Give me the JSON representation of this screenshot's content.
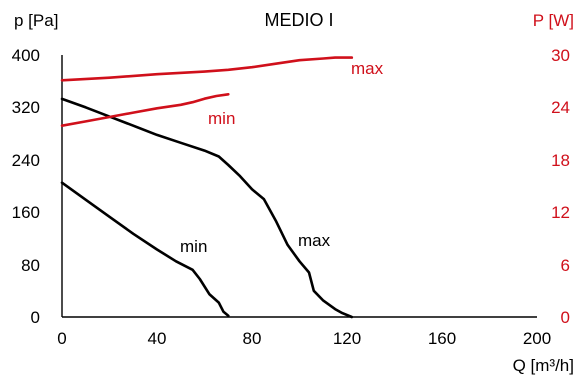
{
  "chart_data": {
    "type": "line",
    "title": "MEDIO I",
    "xlabel": "Q [m³/h]",
    "ylabel_left": "p [Pa]",
    "ylabel_right": "P [W]",
    "xlim": [
      0,
      200
    ],
    "ylim_left": [
      0,
      400
    ],
    "ylim_right": [
      0,
      30
    ],
    "x_ticks": [
      "0",
      "40",
      "80",
      "120",
      "160",
      "200"
    ],
    "y_left_ticks": [
      "0",
      "80",
      "160",
      "240",
      "320",
      "400"
    ],
    "y_right_ticks": [
      "0",
      "6",
      "12",
      "18",
      "24",
      "30"
    ],
    "grid": false,
    "colors": {
      "pressure": "#000000",
      "power": "#d0101b",
      "axis_left": "#000000",
      "axis_right": "#d0101b"
    },
    "series": [
      {
        "name": "max",
        "axis": "left",
        "x": [
          0,
          10,
          20,
          30,
          40,
          50,
          60,
          66,
          70,
          75,
          80,
          85,
          90,
          95,
          100,
          104,
          106,
          110,
          115,
          118,
          122
        ],
        "y": [
          333,
          320,
          306,
          292,
          278,
          266,
          254,
          245,
          232,
          215,
          195,
          180,
          147,
          110,
          85,
          68,
          40,
          25,
          12,
          6,
          0
        ]
      },
      {
        "name": "min",
        "axis": "left",
        "x": [
          0,
          10,
          20,
          30,
          40,
          48,
          55,
          58,
          62,
          66,
          68,
          70
        ],
        "y": [
          205,
          179,
          153,
          127,
          103,
          85,
          72,
          58,
          35,
          22,
          8,
          2
        ]
      },
      {
        "name": "max",
        "axis": "right",
        "x": [
          0,
          20,
          40,
          60,
          70,
          80,
          90,
          100,
          110,
          115,
          122
        ],
        "y": [
          27.1,
          27.4,
          27.8,
          28.1,
          28.3,
          28.6,
          29.0,
          29.4,
          29.6,
          29.7,
          29.7
        ]
      },
      {
        "name": "min",
        "axis": "right",
        "x": [
          0,
          10,
          20,
          30,
          40,
          50,
          55,
          60,
          65,
          70
        ],
        "y": [
          21.9,
          22.4,
          22.9,
          23.4,
          23.9,
          24.3,
          24.6,
          25.0,
          25.3,
          25.5
        ]
      }
    ]
  }
}
